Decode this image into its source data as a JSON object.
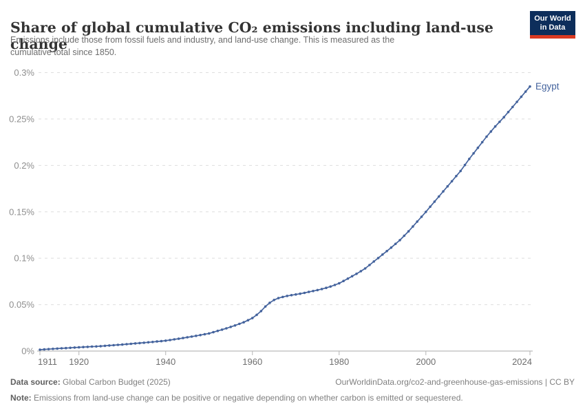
{
  "header": {
    "title": "Share of global cumulative CO₂ emissions including land-use change",
    "subtitle_lines": [
      "Emissions include those from fossil fuels and industry, and land-use change. This is measured as the",
      "cumulative total since 1850."
    ],
    "logo": {
      "line1": "Our World",
      "line2": "in Data",
      "bg_color": "#0d2e5b",
      "bar_color": "#da3a22"
    }
  },
  "chart_data": {
    "type": "line",
    "title": "Share of global cumulative CO₂ emissions including land-use change",
    "entity": "Egypt",
    "unit": "%",
    "xlim": [
      1911,
      2024
    ],
    "ylim": [
      0,
      0.3
    ],
    "x_ticks": [
      1911,
      1920,
      1940,
      1960,
      1980,
      2000,
      2024
    ],
    "y_ticks": [
      {
        "value": 0,
        "label": "0%"
      },
      {
        "value": 0.05,
        "label": "0.05%"
      },
      {
        "value": 0.1,
        "label": "0.1%"
      },
      {
        "value": 0.15,
        "label": "0.15%"
      },
      {
        "value": 0.2,
        "label": "0.2%"
      },
      {
        "value": 0.25,
        "label": "0.25%"
      },
      {
        "value": 0.3,
        "label": "0.3%"
      }
    ],
    "grid": "horizontal-dashed",
    "legend_position": "end-of-line-label",
    "line_color": "#44639d",
    "markers": true,
    "x_range": {
      "start": 1911,
      "end": 2024,
      "step": 1
    },
    "series": [
      {
        "name": "Egypt",
        "values": [
          0.0015,
          0.0018,
          0.0021,
          0.0024,
          0.0027,
          0.003,
          0.0032,
          0.0035,
          0.0038,
          0.004,
          0.0043,
          0.0045,
          0.0048,
          0.005,
          0.0053,
          0.0056,
          0.006,
          0.0063,
          0.0067,
          0.007,
          0.0074,
          0.0078,
          0.0082,
          0.0086,
          0.009,
          0.0094,
          0.0098,
          0.0103,
          0.0107,
          0.0112,
          0.0119,
          0.0126,
          0.0133,
          0.014,
          0.0148,
          0.0156,
          0.0164,
          0.0172,
          0.0181,
          0.019,
          0.0203,
          0.0217,
          0.0231,
          0.0245,
          0.026,
          0.0276,
          0.0293,
          0.031,
          0.0332,
          0.0355,
          0.039,
          0.043,
          0.048,
          0.052,
          0.055,
          0.057,
          0.0583,
          0.0594,
          0.0602,
          0.061,
          0.0618,
          0.0627,
          0.0637,
          0.0647,
          0.0657,
          0.0668,
          0.0681,
          0.0695,
          0.0712,
          0.073,
          0.0755,
          0.078,
          0.0806,
          0.0832,
          0.086,
          0.089,
          0.0927,
          0.0965,
          0.1002,
          0.104,
          0.1077,
          0.1115,
          0.1155,
          0.1195,
          0.1242,
          0.129,
          0.1342,
          0.1395,
          0.1447,
          0.15,
          0.1555,
          0.161,
          0.1665,
          0.172,
          0.1775,
          0.183,
          0.1885,
          0.194,
          0.2005,
          0.207,
          0.213,
          0.219,
          0.225,
          0.231,
          0.2365,
          0.242,
          0.247,
          0.252,
          0.2575,
          0.263,
          0.2685,
          0.274,
          0.2795,
          0.285
        ]
      }
    ]
  },
  "footer": {
    "datasource_label": "Data source:",
    "datasource_text": " Global Carbon Budget (2025)",
    "link": "OurWorldinData.org/co2-and-greenhouse-gas-emissions | CC BY",
    "note_label": "Note:",
    "note_text": " Emissions from land-use change can be positive or negative depending on whether carbon is emitted or sequestered."
  }
}
